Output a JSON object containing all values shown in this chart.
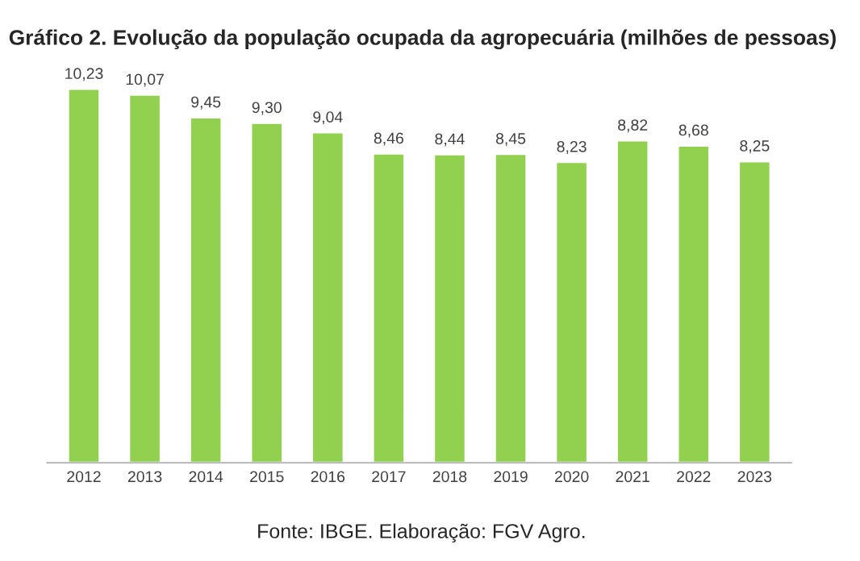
{
  "chart_data": {
    "type": "bar",
    "title": "Gráfico 2. Evolução da população ocupada da agropecuária (milhões de pessoas)",
    "categories": [
      "2012",
      "2013",
      "2014",
      "2015",
      "2016",
      "2017",
      "2018",
      "2019",
      "2020",
      "2021",
      "2022",
      "2023"
    ],
    "values": [
      10.23,
      10.07,
      9.45,
      9.3,
      9.04,
      8.46,
      8.44,
      8.45,
      8.23,
      8.82,
      8.68,
      8.25
    ],
    "value_labels": [
      "10,23",
      "10,07",
      "9,45",
      "9,30",
      "9,04",
      "8,46",
      "8,44",
      "8,45",
      "8,23",
      "8,82",
      "8,68",
      "8,25"
    ],
    "color": "#92d050",
    "tick_labels": "x",
    "grid": false,
    "legend": false,
    "annotations": [
      "Fonte: IBGE. Elaboração: FGV Agro."
    ]
  }
}
